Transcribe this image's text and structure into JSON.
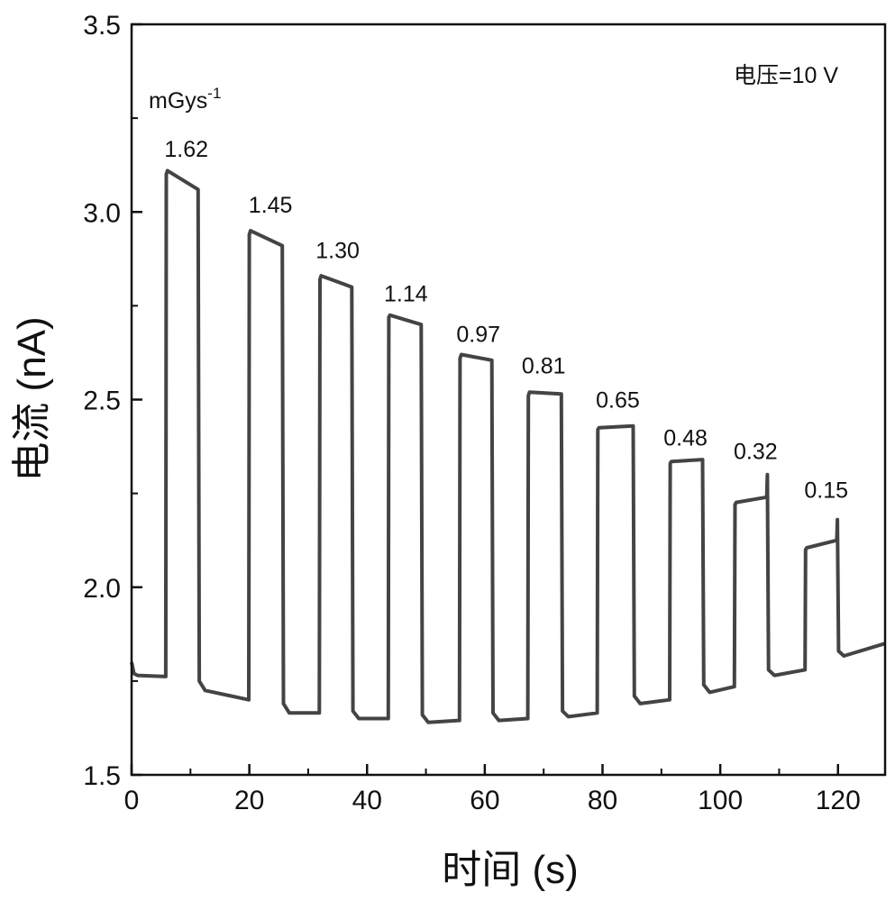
{
  "chart_data": {
    "type": "line",
    "title": "",
    "xlabel": "时间 (s)",
    "ylabel": "电流 (nA)",
    "xlim": [
      0,
      128
    ],
    "ylim": [
      1.5,
      3.5
    ],
    "xticks": [
      0,
      20,
      40,
      60,
      80,
      100,
      120
    ],
    "xtick_labels": [
      "0",
      "20",
      "40",
      "60",
      "80",
      "100",
      "120"
    ],
    "yticks": [
      1.5,
      2.0,
      2.5,
      3.0,
      3.5
    ],
    "ytick_labels": [
      "1.5",
      "2.0",
      "2.5",
      "3.0",
      "3.5"
    ],
    "grid": false,
    "legend": null,
    "annotations": {
      "voltage": "电压=10 V",
      "unit": "mGys",
      "unit_exp": "-1",
      "dose_rates": [
        {
          "text": "1.62",
          "x": 9.3,
          "y": 3.147
        },
        {
          "text": "1.45",
          "x": 23.6,
          "y": 2.998
        },
        {
          "text": "1.30",
          "x": 35.0,
          "y": 2.877
        },
        {
          "text": "1.14",
          "x": 46.6,
          "y": 2.762
        },
        {
          "text": "0.97",
          "x": 58.9,
          "y": 2.654
        },
        {
          "text": "0.81",
          "x": 70.0,
          "y": 2.57
        },
        {
          "text": "0.65",
          "x": 82.6,
          "y": 2.478
        },
        {
          "text": "0.48",
          "x": 94.1,
          "y": 2.377
        },
        {
          "text": "0.32",
          "x": 106.0,
          "y": 2.341
        },
        {
          "text": "0.15",
          "x": 118.0,
          "y": 2.238
        }
      ]
    },
    "series": [
      {
        "name": "current",
        "color": "#444444",
        "x": [
          0,
          0.4,
          1,
          5.8,
          5.9,
          6.1,
          11.3,
          11.5,
          12.5,
          19.9,
          20.0,
          20.2,
          25.6,
          25.8,
          26.8,
          31.9,
          32.0,
          32.2,
          37.4,
          37.6,
          38.6,
          43.6,
          43.7,
          43.9,
          49.2,
          49.4,
          50.4,
          55.7,
          55.8,
          56.0,
          61.2,
          61.4,
          62.4,
          67.3,
          67.4,
          67.6,
          73.0,
          73.2,
          74.2,
          79.1,
          79.2,
          79.4,
          85.2,
          85.4,
          86.4,
          91.4,
          91.5,
          91.7,
          97.0,
          97.2,
          98.2,
          102.4,
          102.5,
          102.7,
          107.9,
          108.0,
          108.2,
          109.2,
          114.4,
          114.5,
          114.7,
          119.8,
          119.9,
          120.1,
          121.0,
          128.0
        ],
        "y": [
          1.8,
          1.77,
          1.765,
          1.762,
          3.1,
          3.11,
          3.06,
          1.75,
          1.725,
          1.7,
          2.94,
          2.95,
          2.91,
          1.69,
          1.665,
          1.665,
          2.82,
          2.83,
          2.8,
          1.67,
          1.65,
          1.65,
          2.72,
          2.725,
          2.7,
          1.66,
          1.64,
          1.645,
          2.61,
          2.62,
          2.605,
          1.665,
          1.645,
          1.65,
          2.51,
          2.52,
          2.515,
          1.67,
          1.655,
          1.665,
          2.42,
          2.425,
          2.43,
          1.71,
          1.69,
          1.7,
          2.33,
          2.335,
          2.34,
          1.74,
          1.72,
          1.735,
          2.22,
          2.226,
          2.24,
          2.3,
          1.78,
          1.765,
          1.78,
          2.1,
          2.105,
          2.125,
          2.18,
          1.83,
          1.817,
          1.85
        ]
      }
    ]
  }
}
